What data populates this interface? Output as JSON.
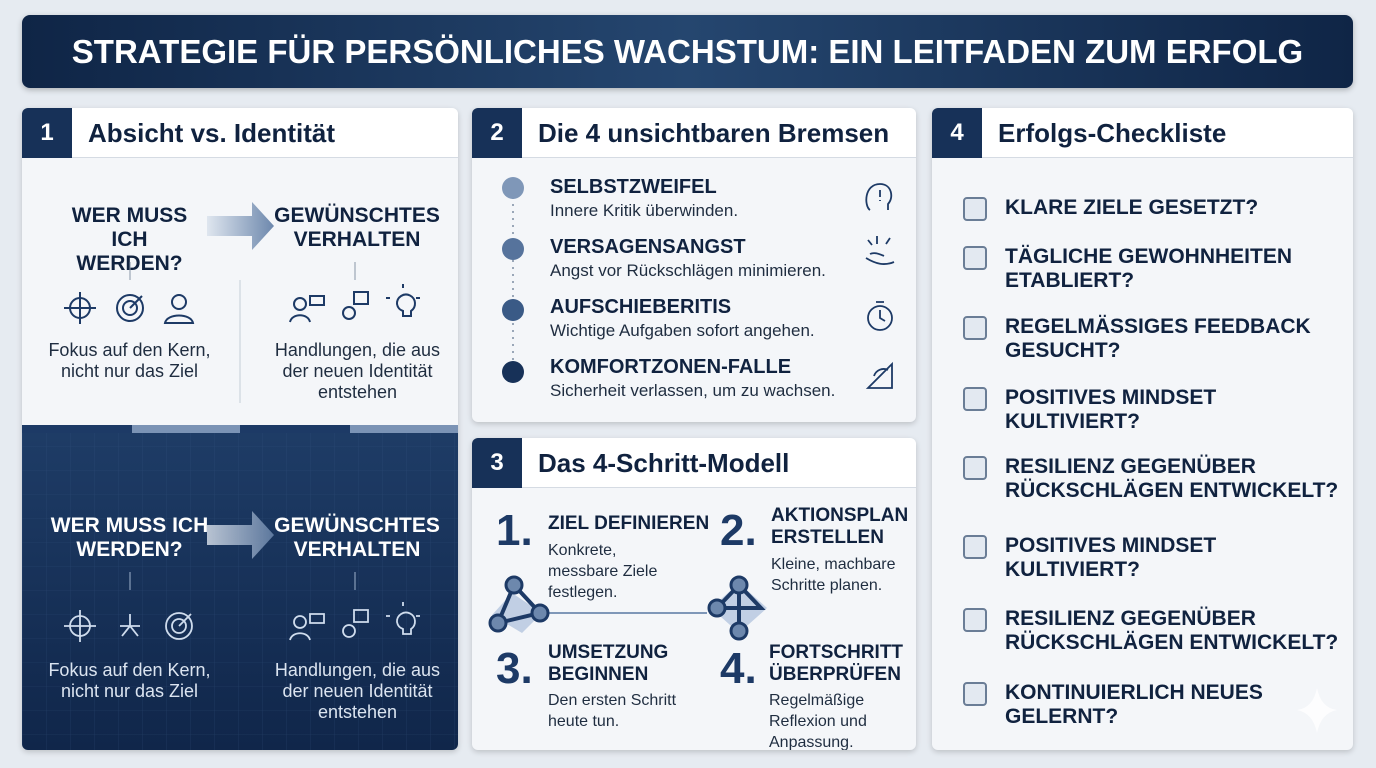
{
  "header": {
    "title": "STRATEGIE FÜR PERSÖNLICHES WACHSTUM: EIN LEITFADEN ZUM ERFOLG"
  },
  "panel1": {
    "number": "1",
    "title": "Absicht vs. Identität",
    "light": {
      "left_head": "WER MUSS ICH WERDEN?",
      "right_head": "GEWÜNSCHTES VERHALTEN",
      "left_caption": "Fokus auf den Kern, nicht nur das Ziel",
      "right_caption": "Handlungen, die aus der neuen Identität entstehen"
    },
    "dark": {
      "left_head": "WER MUSS ICH WERDEN?",
      "right_head": "GEWÜNSCHTES VERHALTEN",
      "left_caption": "Fokus auf den Kern, nicht nur das Ziel",
      "right_caption": "Handlungen, die aus der neuen Identität entstehen"
    }
  },
  "panel2": {
    "number": "2",
    "title": "Die 4 unsichtbaren Bremsen",
    "items": [
      {
        "title": "SELBSTZWEIFEL",
        "text": "Innere Kritik überwinden."
      },
      {
        "title": "VERSAGENSANGST",
        "text": "Angst vor Rückschlägen minimieren."
      },
      {
        "title": "AUFSCHIEBERITIS",
        "text": "Wichtige Aufgaben sofort angehen."
      },
      {
        "title": "KOMFORTZONEN-FALLE",
        "text": "Sicherheit verlassen, um zu wachsen."
      }
    ]
  },
  "panel3": {
    "number": "3",
    "title": "Das 4-Schritt-Modell",
    "steps": [
      {
        "number": "1.",
        "title": "ZIEL DEFINIEREN",
        "text": "Konkrete, messbare Ziele festlegen."
      },
      {
        "number": "2.",
        "title": "AKTIONSPLAN ERSTELLEN",
        "text": "Kleine, machbare Schritte planen."
      },
      {
        "number": "3.",
        "title": "UMSETZUNG BEGINNEN",
        "text": "Den ersten Schritt heute tun."
      },
      {
        "number": "4.",
        "title": "FORTSCHRITT ÜBERPRÜFEN",
        "text": "Regelmäßige Reflexion und Anpassung."
      }
    ]
  },
  "panel4": {
    "number": "4",
    "title": "Erfolgs-Checkliste",
    "items": [
      "KLARE ZIELE GESETZT?",
      "TÄGLICHE GEWOHNHEITEN ETABLIERT?",
      "REGELMÄSSIGES FEEDBACK GESUCHT?",
      "POSITIVES MINDSET KULTIVIERT?",
      "RESILIENZ GEGENÜBER RÜCKSCHLÄGEN ENTWICKELT?",
      "POSITIVES MINDSET KULTIVIERT?",
      "RESILIENZ GEGENÜBER RÜCKSCHLÄGEN ENTWICKELT?",
      "KONTINUIERLICH NEUES GELERNT?"
    ]
  }
}
